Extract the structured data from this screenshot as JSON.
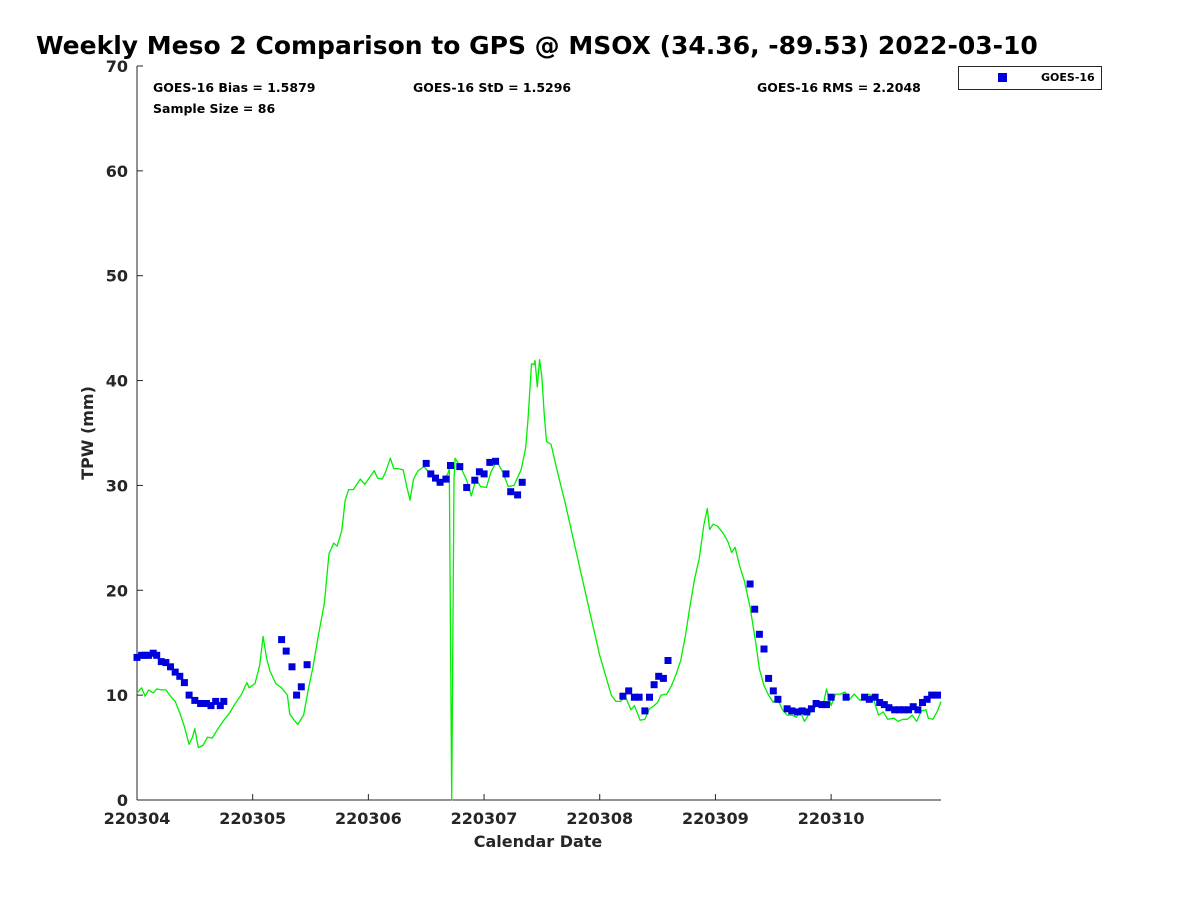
{
  "chart_data": {
    "type": "scatter",
    "title": "Weekly Meso 2 Comparison to GPS @ MSOX (34.36, -89.53) 2022-03-10",
    "xlabel": "Calendar Date",
    "ylabel": "TPW (mm)",
    "xlim": [
      0,
      6.95
    ],
    "ylim": [
      0,
      70
    ],
    "x_ticks": [
      {
        "value": 0,
        "label": "220304"
      },
      {
        "value": 1,
        "label": "220305"
      },
      {
        "value": 2,
        "label": "220306"
      },
      {
        "value": 3,
        "label": "220307"
      },
      {
        "value": 4,
        "label": "220308"
      },
      {
        "value": 5,
        "label": "220309"
      },
      {
        "value": 6,
        "label": "220310"
      }
    ],
    "y_ticks": [
      0,
      10,
      20,
      30,
      40,
      50,
      60,
      70
    ],
    "grid": false,
    "stats": {
      "bias": "GOES-16 Bias = 1.5879",
      "std": "GOES-16 StD = 1.5296",
      "rms": "GOES-16 RMS = 2.2048",
      "sample_size": "Sample Size = 86"
    },
    "legend": {
      "placement": "top-right-outside",
      "entries": [
        "GOES-16"
      ]
    },
    "series": [
      {
        "name": "GOES-16",
        "kind": "scatter",
        "color": "#0000dd",
        "points": [
          [
            0.0,
            13.6
          ],
          [
            0.04,
            13.8
          ],
          [
            0.07,
            13.8
          ],
          [
            0.1,
            13.8
          ],
          [
            0.14,
            14.0
          ],
          [
            0.17,
            13.8
          ],
          [
            0.21,
            13.2
          ],
          [
            0.25,
            13.1
          ],
          [
            0.29,
            12.7
          ],
          [
            0.33,
            12.2
          ],
          [
            0.37,
            11.8
          ],
          [
            0.41,
            11.2
          ],
          [
            0.45,
            10.0
          ],
          [
            0.5,
            9.5
          ],
          [
            0.55,
            9.2
          ],
          [
            0.6,
            9.2
          ],
          [
            0.64,
            9.0
          ],
          [
            0.68,
            9.4
          ],
          [
            0.72,
            9.0
          ],
          [
            0.75,
            9.4
          ],
          [
            1.25,
            15.3
          ],
          [
            1.29,
            14.2
          ],
          [
            1.34,
            12.7
          ],
          [
            1.38,
            10.0
          ],
          [
            1.42,
            10.8
          ],
          [
            1.47,
            12.9
          ],
          [
            2.5,
            32.1
          ],
          [
            2.54,
            31.1
          ],
          [
            2.58,
            30.7
          ],
          [
            2.62,
            30.3
          ],
          [
            2.67,
            30.6
          ],
          [
            2.71,
            31.9
          ],
          [
            2.79,
            31.8
          ],
          [
            2.85,
            29.8
          ],
          [
            2.92,
            30.5
          ],
          [
            2.96,
            31.3
          ],
          [
            3.0,
            31.1
          ],
          [
            3.05,
            32.2
          ],
          [
            3.1,
            32.3
          ],
          [
            3.19,
            31.1
          ],
          [
            3.23,
            29.4
          ],
          [
            3.29,
            29.1
          ],
          [
            3.33,
            30.3
          ],
          [
            4.2,
            9.9
          ],
          [
            4.25,
            10.4
          ],
          [
            4.3,
            9.8
          ],
          [
            4.34,
            9.8
          ],
          [
            4.39,
            8.5
          ],
          [
            4.43,
            9.8
          ],
          [
            4.47,
            11.0
          ],
          [
            4.51,
            11.8
          ],
          [
            4.55,
            11.6
          ],
          [
            4.59,
            13.3
          ],
          [
            5.3,
            20.6
          ],
          [
            5.34,
            18.2
          ],
          [
            5.38,
            15.8
          ],
          [
            5.42,
            14.4
          ],
          [
            5.46,
            11.6
          ],
          [
            5.5,
            10.4
          ],
          [
            5.54,
            9.6
          ],
          [
            5.62,
            8.7
          ],
          [
            5.66,
            8.5
          ],
          [
            5.71,
            8.4
          ],
          [
            5.75,
            8.5
          ],
          [
            5.79,
            8.4
          ],
          [
            5.83,
            8.7
          ],
          [
            5.87,
            9.2
          ],
          [
            5.92,
            9.1
          ],
          [
            5.96,
            9.1
          ],
          [
            6.0,
            9.8
          ],
          [
            6.13,
            9.8
          ],
          [
            6.29,
            9.8
          ],
          [
            6.33,
            9.6
          ],
          [
            6.38,
            9.8
          ],
          [
            6.42,
            9.3
          ],
          [
            6.46,
            9.1
          ],
          [
            6.5,
            8.8
          ],
          [
            6.55,
            8.6
          ],
          [
            6.59,
            8.6
          ],
          [
            6.63,
            8.6
          ],
          [
            6.67,
            8.6
          ],
          [
            6.71,
            8.9
          ],
          [
            6.75,
            8.6
          ],
          [
            6.79,
            9.3
          ],
          [
            6.83,
            9.6
          ],
          [
            6.87,
            10.0
          ],
          [
            6.92,
            10.0
          ]
        ]
      },
      {
        "kind": "line",
        "color": "#00ee00",
        "points": [
          [
            0.0,
            10.2
          ],
          [
            0.04,
            10.7
          ],
          [
            0.07,
            9.9
          ],
          [
            0.1,
            10.5
          ],
          [
            0.14,
            10.2
          ],
          [
            0.17,
            10.6
          ],
          [
            0.21,
            10.5
          ],
          [
            0.25,
            10.5
          ],
          [
            0.29,
            9.9
          ],
          [
            0.33,
            9.4
          ],
          [
            0.37,
            8.3
          ],
          [
            0.41,
            7.0
          ],
          [
            0.45,
            5.3
          ],
          [
            0.48,
            6.0
          ],
          [
            0.5,
            6.8
          ],
          [
            0.53,
            5.0
          ],
          [
            0.57,
            5.2
          ],
          [
            0.61,
            6.0
          ],
          [
            0.65,
            5.9
          ],
          [
            0.7,
            6.8
          ],
          [
            0.75,
            7.6
          ],
          [
            0.8,
            8.3
          ],
          [
            0.85,
            9.2
          ],
          [
            0.9,
            10.0
          ],
          [
            0.95,
            11.2
          ],
          [
            0.97,
            10.7
          ],
          [
            1.02,
            11.1
          ],
          [
            1.06,
            12.8
          ],
          [
            1.09,
            15.6
          ],
          [
            1.12,
            13.5
          ],
          [
            1.15,
            12.3
          ],
          [
            1.2,
            11.1
          ],
          [
            1.25,
            10.7
          ],
          [
            1.3,
            10.0
          ],
          [
            1.32,
            8.2
          ],
          [
            1.36,
            7.6
          ],
          [
            1.39,
            7.2
          ],
          [
            1.44,
            8.1
          ],
          [
            1.48,
            10.5
          ],
          [
            1.52,
            12.6
          ],
          [
            1.57,
            15.8
          ],
          [
            1.62,
            18.8
          ],
          [
            1.66,
            23.5
          ],
          [
            1.7,
            24.5
          ],
          [
            1.73,
            24.2
          ],
          [
            1.77,
            25.7
          ],
          [
            1.8,
            28.6
          ],
          [
            1.83,
            29.6
          ],
          [
            1.87,
            29.6
          ],
          [
            1.9,
            30.1
          ],
          [
            1.93,
            30.6
          ],
          [
            1.97,
            30.1
          ],
          [
            2.0,
            30.6
          ],
          [
            2.05,
            31.4
          ],
          [
            2.08,
            30.7
          ],
          [
            2.12,
            30.6
          ],
          [
            2.15,
            31.3
          ],
          [
            2.19,
            32.6
          ],
          [
            2.22,
            31.6
          ],
          [
            2.26,
            31.6
          ],
          [
            2.3,
            31.5
          ],
          [
            2.33,
            30.0
          ],
          [
            2.36,
            28.6
          ],
          [
            2.39,
            30.6
          ],
          [
            2.43,
            31.4
          ],
          [
            2.48,
            31.8
          ],
          [
            2.55,
            30.9
          ],
          [
            2.61,
            30.1
          ],
          [
            2.66,
            30.6
          ],
          [
            2.69,
            31.2
          ],
          [
            2.7,
            31.6
          ],
          [
            2.72,
            0.0
          ],
          [
            2.74,
            30.6
          ],
          [
            2.75,
            32.6
          ],
          [
            2.79,
            31.9
          ],
          [
            2.85,
            30.5
          ],
          [
            2.89,
            29.0
          ],
          [
            2.93,
            30.6
          ],
          [
            2.97,
            29.9
          ],
          [
            3.02,
            29.8
          ],
          [
            3.06,
            31.3
          ],
          [
            3.11,
            32.3
          ],
          [
            3.16,
            31.3
          ],
          [
            3.21,
            29.9
          ],
          [
            3.26,
            30.0
          ],
          [
            3.32,
            31.5
          ],
          [
            3.36,
            33.6
          ],
          [
            3.38,
            36.3
          ],
          [
            3.41,
            41.6
          ],
          [
            3.43,
            41.5
          ],
          [
            3.44,
            41.9
          ],
          [
            3.46,
            39.4
          ],
          [
            3.48,
            42.0
          ],
          [
            3.5,
            40.3
          ],
          [
            3.52,
            36.8
          ],
          [
            3.54,
            34.2
          ],
          [
            3.58,
            33.9
          ],
          [
            3.63,
            31.5
          ],
          [
            3.7,
            28.4
          ],
          [
            3.8,
            23.5
          ],
          [
            3.9,
            18.6
          ],
          [
            4.0,
            13.8
          ],
          [
            4.1,
            10.0
          ],
          [
            4.14,
            9.4
          ],
          [
            4.18,
            9.4
          ],
          [
            4.22,
            9.9
          ],
          [
            4.27,
            8.6
          ],
          [
            4.3,
            9.0
          ],
          [
            4.35,
            7.6
          ],
          [
            4.39,
            7.7
          ],
          [
            4.43,
            8.7
          ],
          [
            4.47,
            9.0
          ],
          [
            4.5,
            9.3
          ],
          [
            4.53,
            10.0
          ],
          [
            4.58,
            10.1
          ],
          [
            4.62,
            10.9
          ],
          [
            4.66,
            12.0
          ],
          [
            4.7,
            13.3
          ],
          [
            4.74,
            15.6
          ],
          [
            4.78,
            18.5
          ],
          [
            4.82,
            21.1
          ],
          [
            4.86,
            23.0
          ],
          [
            4.9,
            26.2
          ],
          [
            4.93,
            27.8
          ],
          [
            4.95,
            25.8
          ],
          [
            4.98,
            26.3
          ],
          [
            5.02,
            26.1
          ],
          [
            5.07,
            25.4
          ],
          [
            5.11,
            24.6
          ],
          [
            5.14,
            23.6
          ],
          [
            5.17,
            24.1
          ],
          [
            5.21,
            22.3
          ],
          [
            5.25,
            20.9
          ],
          [
            5.3,
            18.4
          ],
          [
            5.35,
            14.9
          ],
          [
            5.38,
            12.5
          ],
          [
            5.42,
            10.9
          ],
          [
            5.46,
            10.0
          ],
          [
            5.5,
            9.3
          ],
          [
            5.53,
            9.8
          ],
          [
            5.58,
            8.6
          ],
          [
            5.62,
            8.1
          ],
          [
            5.66,
            8.1
          ],
          [
            5.7,
            7.9
          ],
          [
            5.73,
            8.5
          ],
          [
            5.77,
            7.5
          ],
          [
            5.81,
            8.2
          ],
          [
            5.86,
            8.8
          ],
          [
            5.9,
            9.3
          ],
          [
            5.93,
            9.0
          ],
          [
            5.96,
            10.6
          ],
          [
            6.0,
            9.0
          ],
          [
            6.04,
            10.1
          ],
          [
            6.08,
            10.1
          ],
          [
            6.12,
            10.3
          ],
          [
            6.16,
            9.6
          ],
          [
            6.2,
            10.1
          ],
          [
            6.25,
            9.5
          ],
          [
            6.29,
            9.9
          ],
          [
            6.33,
            10.1
          ],
          [
            6.37,
            9.5
          ],
          [
            6.41,
            8.1
          ],
          [
            6.45,
            8.4
          ],
          [
            6.49,
            7.7
          ],
          [
            6.54,
            7.8
          ],
          [
            6.58,
            7.5
          ],
          [
            6.62,
            7.7
          ],
          [
            6.66,
            7.7
          ],
          [
            6.7,
            8.1
          ],
          [
            6.74,
            7.5
          ],
          [
            6.78,
            8.5
          ],
          [
            6.82,
            8.6
          ],
          [
            6.84,
            7.8
          ],
          [
            6.88,
            7.7
          ],
          [
            6.92,
            8.5
          ],
          [
            6.95,
            9.4
          ]
        ]
      }
    ]
  }
}
